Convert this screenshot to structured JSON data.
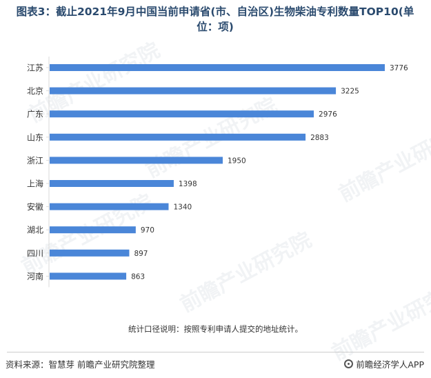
{
  "title_line1": "图表3：截止2021年9月中国当前申请省(市、自治区)生物柴油专利数量TOP10(单",
  "title_line2": "位：项)",
  "note": "统计口径说明：按照专利申请人提交的地址统计。",
  "source": "资料来源：智慧芽 前瞻产业研究院整理",
  "brand": "前瞻经济学人APP",
  "watermark": "前瞻产业研究院",
  "colors": {
    "bar": "#4a86d8",
    "title": "#2a4a6e",
    "text": "#333333"
  },
  "chart_data": {
    "type": "bar",
    "orientation": "horizontal",
    "categories": [
      "江苏",
      "北京",
      "广东",
      "山东",
      "浙江",
      "上海",
      "安徽",
      "湖北",
      "四川",
      "河南"
    ],
    "values": [
      3776,
      3225,
      2976,
      2883,
      1950,
      1398,
      1340,
      970,
      897,
      863
    ],
    "data_labels": true,
    "grid": false
  }
}
